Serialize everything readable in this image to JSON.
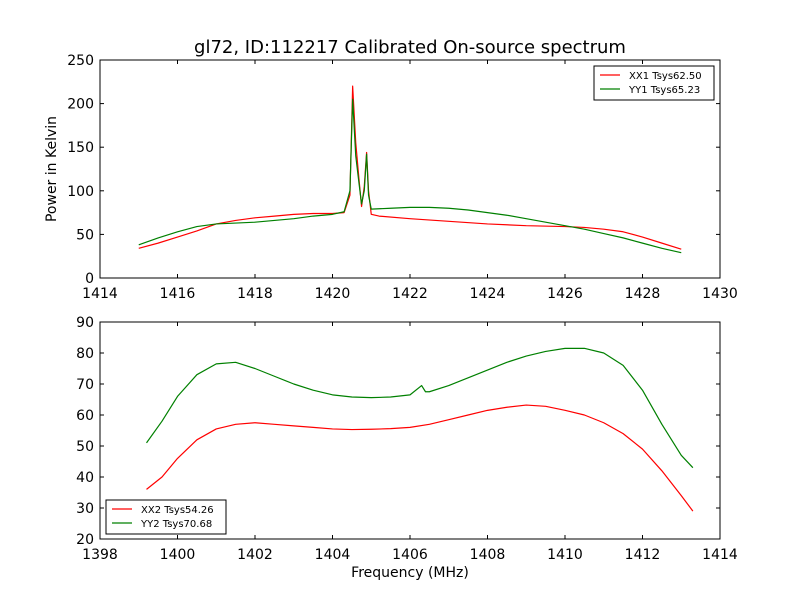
{
  "title": "gl72, ID:112217 Calibrated On-source spectrum",
  "chart_data": [
    {
      "type": "line",
      "ylabel": "Power in Kelvin",
      "xlabel": "",
      "xlim": [
        1414,
        1430
      ],
      "ylim": [
        0,
        250
      ],
      "xticks": [
        1414,
        1416,
        1418,
        1420,
        1422,
        1424,
        1426,
        1428,
        1430
      ],
      "yticks": [
        0,
        50,
        100,
        150,
        200,
        250
      ],
      "legend": "top-right",
      "series": [
        {
          "name": "XX1 Tsys62.50",
          "color": "#ff0000",
          "points": [
            [
              1415.0,
              34
            ],
            [
              1415.5,
              40
            ],
            [
              1416.0,
              47
            ],
            [
              1416.5,
              54
            ],
            [
              1417.0,
              62
            ],
            [
              1417.5,
              66
            ],
            [
              1418.0,
              69
            ],
            [
              1418.5,
              71
            ],
            [
              1419.0,
              73
            ],
            [
              1419.5,
              74
            ],
            [
              1420.0,
              74
            ],
            [
              1420.3,
              75
            ],
            [
              1420.45,
              95
            ],
            [
              1420.52,
              220
            ],
            [
              1420.6,
              155
            ],
            [
              1420.68,
              115
            ],
            [
              1420.75,
              82
            ],
            [
              1420.82,
              105
            ],
            [
              1420.88,
              144
            ],
            [
              1420.93,
              100
            ],
            [
              1421.0,
              73
            ],
            [
              1421.2,
              71
            ],
            [
              1422.0,
              68
            ],
            [
              1423.0,
              65
            ],
            [
              1424.0,
              62
            ],
            [
              1425.0,
              60
            ],
            [
              1426.0,
              59
            ],
            [
              1426.5,
              58
            ],
            [
              1427.0,
              56
            ],
            [
              1427.5,
              53
            ],
            [
              1428.0,
              47
            ],
            [
              1428.5,
              40
            ],
            [
              1429.0,
              33
            ]
          ]
        },
        {
          "name": "YY1 Tsys65.23",
          "color": "#008000",
          "points": [
            [
              1415.0,
              38
            ],
            [
              1415.5,
              46
            ],
            [
              1416.0,
              53
            ],
            [
              1416.5,
              59
            ],
            [
              1417.0,
              62
            ],
            [
              1417.5,
              63
            ],
            [
              1418.0,
              64
            ],
            [
              1418.5,
              66
            ],
            [
              1419.0,
              68
            ],
            [
              1419.5,
              71
            ],
            [
              1420.0,
              73
            ],
            [
              1420.3,
              76
            ],
            [
              1420.45,
              100
            ],
            [
              1420.52,
              205
            ],
            [
              1420.6,
              140
            ],
            [
              1420.68,
              110
            ],
            [
              1420.75,
              85
            ],
            [
              1420.82,
              100
            ],
            [
              1420.88,
              142
            ],
            [
              1420.93,
              95
            ],
            [
              1421.0,
              79
            ],
            [
              1421.5,
              80
            ],
            [
              1422.0,
              81
            ],
            [
              1422.5,
              81
            ],
            [
              1423.0,
              80
            ],
            [
              1423.5,
              78
            ],
            [
              1424.0,
              75
            ],
            [
              1424.5,
              72
            ],
            [
              1425.0,
              68
            ],
            [
              1425.5,
              64
            ],
            [
              1426.0,
              60
            ],
            [
              1426.5,
              56
            ],
            [
              1427.0,
              51
            ],
            [
              1427.5,
              46
            ],
            [
              1428.0,
              40
            ],
            [
              1428.5,
              34
            ],
            [
              1429.0,
              29
            ]
          ]
        }
      ]
    },
    {
      "type": "line",
      "ylabel": "",
      "xlabel": "Frequency (MHz)",
      "xlim": [
        1398,
        1414
      ],
      "ylim": [
        20,
        90
      ],
      "xticks": [
        1398,
        1400,
        1402,
        1404,
        1406,
        1408,
        1410,
        1412,
        1414
      ],
      "yticks": [
        20,
        30,
        40,
        50,
        60,
        70,
        80,
        90
      ],
      "legend": "bottom-left",
      "series": [
        {
          "name": "XX2 Tsys54.26",
          "color": "#ff0000",
          "points": [
            [
              1399.2,
              36
            ],
            [
              1399.6,
              40
            ],
            [
              1400.0,
              46
            ],
            [
              1400.5,
              52
            ],
            [
              1401.0,
              55.5
            ],
            [
              1401.5,
              57
            ],
            [
              1402.0,
              57.5
            ],
            [
              1402.5,
              57
            ],
            [
              1403.0,
              56.5
            ],
            [
              1403.5,
              56
            ],
            [
              1404.0,
              55.5
            ],
            [
              1404.5,
              55.3
            ],
            [
              1405.0,
              55.4
            ],
            [
              1405.5,
              55.6
            ],
            [
              1406.0,
              56
            ],
            [
              1406.5,
              57
            ],
            [
              1407.0,
              58.5
            ],
            [
              1407.5,
              60
            ],
            [
              1408.0,
              61.5
            ],
            [
              1408.5,
              62.5
            ],
            [
              1409.0,
              63.2
            ],
            [
              1409.5,
              62.8
            ],
            [
              1410.0,
              61.5
            ],
            [
              1410.5,
              60
            ],
            [
              1411.0,
              57.5
            ],
            [
              1411.5,
              54
            ],
            [
              1412.0,
              49
            ],
            [
              1412.5,
              42
            ],
            [
              1413.0,
              34
            ],
            [
              1413.3,
              29
            ]
          ]
        },
        {
          "name": "YY2 Tsys70.68",
          "color": "#008000",
          "points": [
            [
              1399.2,
              51
            ],
            [
              1399.6,
              58
            ],
            [
              1400.0,
              66
            ],
            [
              1400.5,
              73
            ],
            [
              1401.0,
              76.5
            ],
            [
              1401.5,
              77
            ],
            [
              1402.0,
              75
            ],
            [
              1402.5,
              72.5
            ],
            [
              1403.0,
              70
            ],
            [
              1403.5,
              68
            ],
            [
              1404.0,
              66.5
            ],
            [
              1404.5,
              65.8
            ],
            [
              1405.0,
              65.6
            ],
            [
              1405.5,
              65.8
            ],
            [
              1406.0,
              66.5
            ],
            [
              1406.3,
              69.5
            ],
            [
              1406.4,
              67.5
            ],
            [
              1406.5,
              67.5
            ],
            [
              1407.0,
              69.5
            ],
            [
              1407.5,
              72
            ],
            [
              1408.0,
              74.5
            ],
            [
              1408.5,
              77
            ],
            [
              1409.0,
              79
            ],
            [
              1409.5,
              80.5
            ],
            [
              1410.0,
              81.5
            ],
            [
              1410.5,
              81.5
            ],
            [
              1411.0,
              80
            ],
            [
              1411.5,
              76
            ],
            [
              1412.0,
              68
            ],
            [
              1412.5,
              57
            ],
            [
              1413.0,
              47
            ],
            [
              1413.3,
              43
            ]
          ]
        }
      ]
    }
  ]
}
